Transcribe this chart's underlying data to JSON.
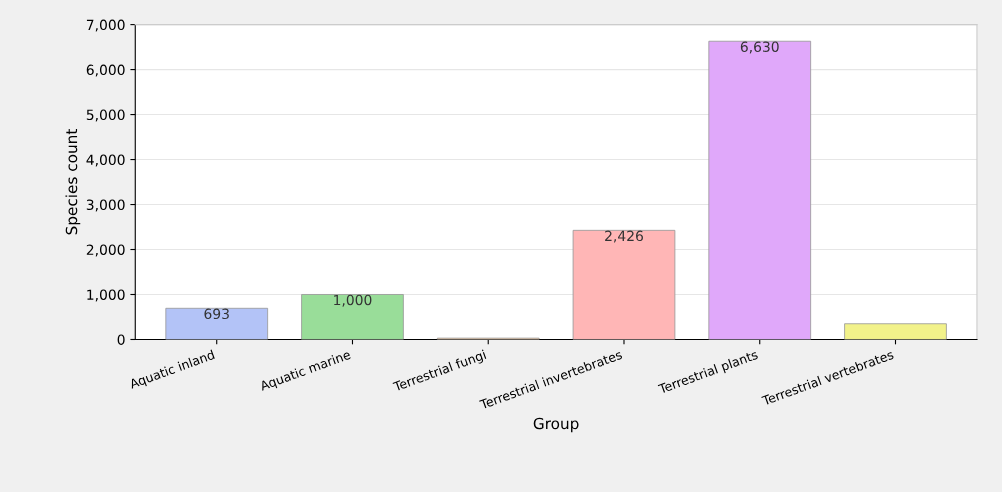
{
  "chart_data": {
    "type": "bar",
    "xlabel": "Group",
    "ylabel": "Species count",
    "categories": [
      "Aquatic inland",
      "Aquatic marine",
      "Terrestrial fungi",
      "Terrestrial invertebrates",
      "Terrestrial plants",
      "Terrestrial vertebrates"
    ],
    "values": [
      693,
      1000,
      30,
      2426,
      6630,
      350
    ],
    "value_labels": [
      "693",
      "1,000",
      null,
      "2,426",
      "6,630",
      null
    ],
    "colors": [
      "#b3c3f7",
      "#99dd99",
      "#f0c090",
      "#ffb6b6",
      "#e0a8fa",
      "#f2f28a"
    ],
    "ylim": [
      0,
      7000
    ],
    "yticks": [
      0,
      {
        "value": 1000,
        "label": "1,000"
      },
      {
        "value": 2000,
        "label": "2,000"
      },
      {
        "value": 3000,
        "label": "3,000"
      },
      {
        "value": 4000,
        "label": "4,000"
      },
      {
        "value": 5000,
        "label": "5,000"
      },
      {
        "value": 6000,
        "label": "6,000"
      },
      {
        "value": 7000,
        "label": "7,000"
      }
    ],
    "grid": "y"
  }
}
